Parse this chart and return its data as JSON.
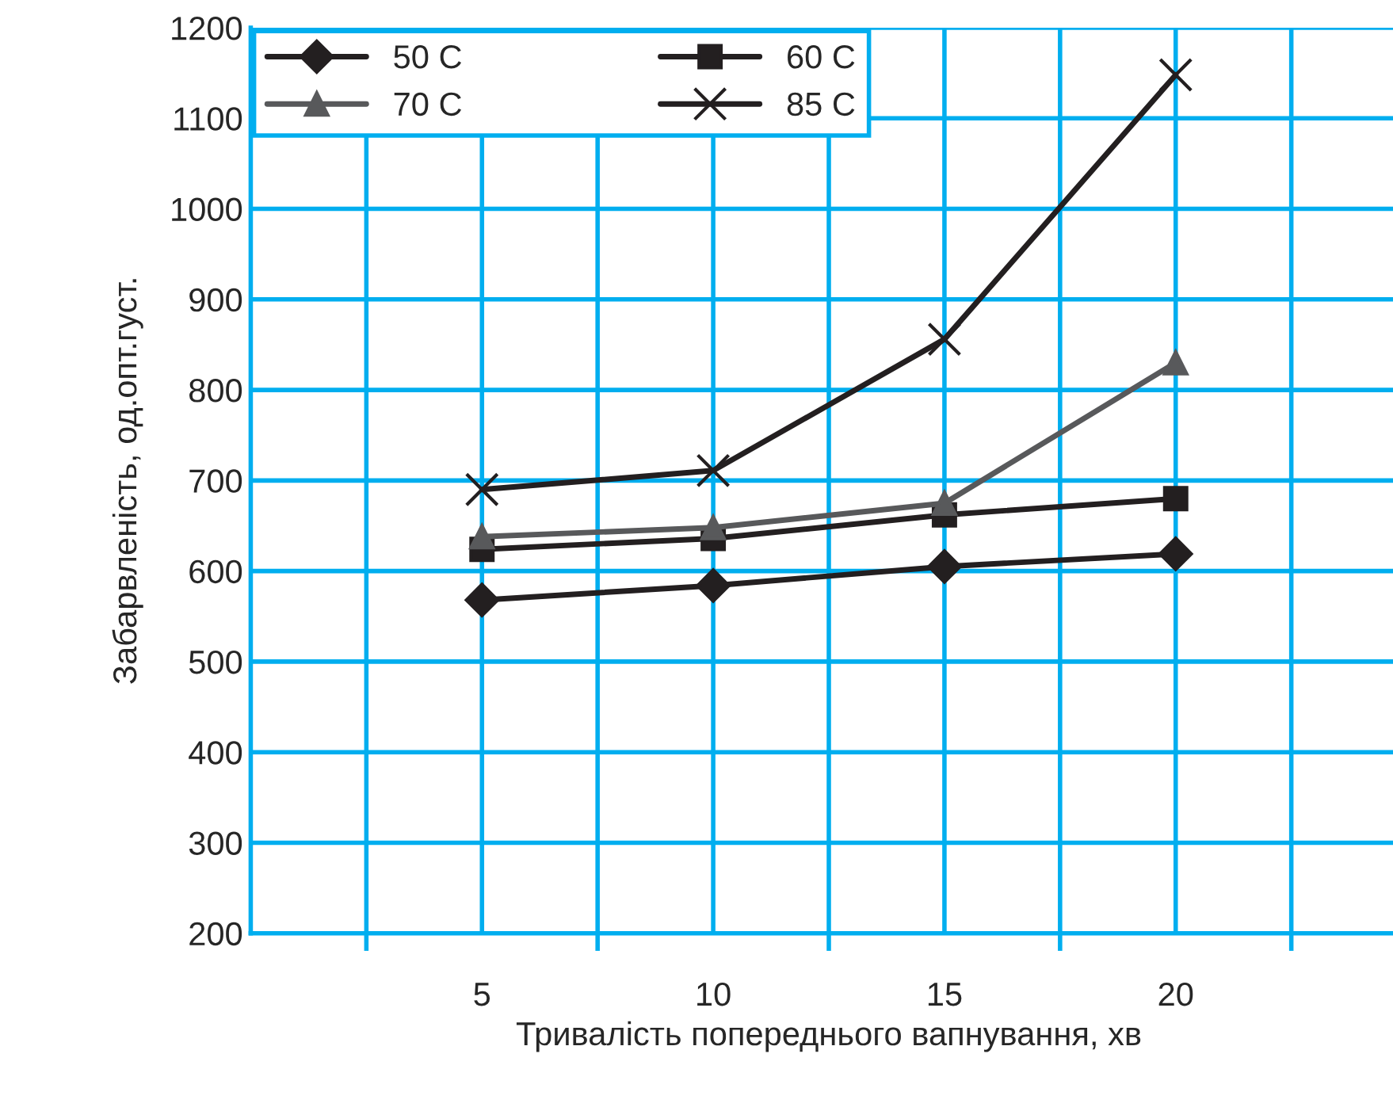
{
  "chart_data": {
    "type": "line",
    "xlabel": "Тривалість попереднього вапнування, хв",
    "ylabel": "Забарвленість, од.опт.густ.",
    "categories": [
      "5",
      "10",
      "15",
      "20"
    ],
    "ylim": [
      200,
      1200
    ],
    "yticks": [
      200,
      300,
      400,
      500,
      600,
      700,
      800,
      900,
      1000,
      1100,
      1200
    ],
    "grid": true,
    "legend": "top left",
    "series": [
      {
        "name": "50 C",
        "color": "#231f20",
        "marker": "diamond",
        "values": [
          568,
          584,
          605,
          619
        ]
      },
      {
        "name": "60 C",
        "color": "#231f20",
        "marker": "square",
        "values": [
          624,
          636,
          662,
          680
        ]
      },
      {
        "name": "70 C",
        "color": "#58595b",
        "marker": "triangle",
        "values": [
          638,
          648,
          675,
          830
        ]
      },
      {
        "name": "85 C",
        "color": "#231f20",
        "marker": "cross",
        "values": [
          690,
          711,
          856,
          1148
        ]
      }
    ]
  }
}
